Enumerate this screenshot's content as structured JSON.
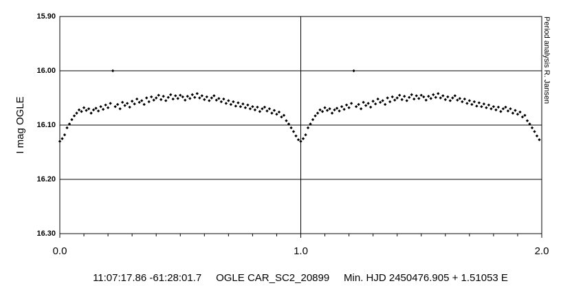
{
  "chart_data": {
    "type": "scatter",
    "ylabel": "I mag OGLE",
    "side_note": "Period analysis R. Jansen",
    "footer": "11:07:17.86 -61:28:01.7     OGLE CAR_SC2_20899     Min. HJD 2450476.905 + 1.51053 E",
    "xlim": [
      0,
      2
    ],
    "ylim": [
      16.3,
      15.9
    ],
    "inverted_y": true,
    "xticks": [
      {
        "value": 0,
        "label": "0.0"
      },
      {
        "value": 1,
        "label": "1.0"
      },
      {
        "value": 2,
        "label": "2.0"
      }
    ],
    "xminorticks": [
      0.1,
      0.2,
      0.3,
      0.4,
      0.5,
      0.6,
      0.7,
      0.8,
      0.9,
      1.1,
      1.2,
      1.3,
      1.4,
      1.5,
      1.6,
      1.7,
      1.8,
      1.9
    ],
    "yticks": [
      {
        "value": 15.9,
        "label": "15.90"
      },
      {
        "value": 16.0,
        "label": "16.00"
      },
      {
        "value": 16.1,
        "label": "16.10"
      },
      {
        "value": 16.2,
        "label": "16.20"
      },
      {
        "value": 16.3,
        "label": "16.30"
      }
    ],
    "grid": true,
    "color": "#000000",
    "x": [
      0,
      0.01,
      0.02,
      0.03,
      0.04,
      0.05,
      0.06,
      0.07,
      0.08,
      0.09,
      0.1,
      0.11,
      0.12,
      0.13,
      0.14,
      0.15,
      0.16,
      0.17,
      0.18,
      0.19,
      0.2,
      0.21,
      0.22,
      0.23,
      0.24,
      0.25,
      0.26,
      0.27,
      0.28,
      0.29,
      0.3,
      0.31,
      0.32,
      0.33,
      0.34,
      0.35,
      0.36,
      0.37,
      0.38,
      0.39,
      0.4,
      0.41,
      0.42,
      0.43,
      0.44,
      0.45,
      0.46,
      0.47,
      0.48,
      0.49,
      0.5,
      0.51,
      0.52,
      0.53,
      0.54,
      0.55,
      0.56,
      0.57,
      0.58,
      0.59,
      0.6,
      0.61,
      0.62,
      0.63,
      0.64,
      0.65,
      0.66,
      0.67,
      0.68,
      0.69,
      0.7,
      0.71,
      0.72,
      0.73,
      0.74,
      0.75,
      0.76,
      0.77,
      0.78,
      0.79,
      0.8,
      0.81,
      0.82,
      0.83,
      0.84,
      0.85,
      0.86,
      0.87,
      0.88,
      0.89,
      0.9,
      0.91,
      0.92,
      0.93,
      0.94,
      0.95,
      0.96,
      0.97,
      0.98,
      0.99,
      1,
      1.01,
      1.02,
      1.03,
      1.04,
      1.05,
      1.06,
      1.07,
      1.08,
      1.09,
      1.1,
      1.11,
      1.12,
      1.13,
      1.14,
      1.15,
      1.16,
      1.17,
      1.18,
      1.19,
      1.2,
      1.21,
      1.22,
      1.23,
      1.24,
      1.25,
      1.26,
      1.27,
      1.28,
      1.29,
      1.3,
      1.31,
      1.32,
      1.33,
      1.34,
      1.35,
      1.36,
      1.37,
      1.38,
      1.39,
      1.4,
      1.41,
      1.42,
      1.43,
      1.44,
      1.45,
      1.46,
      1.47,
      1.48,
      1.49,
      1.5,
      1.51,
      1.52,
      1.53,
      1.54,
      1.55,
      1.56,
      1.57,
      1.58,
      1.59,
      1.6,
      1.61,
      1.62,
      1.63,
      1.64,
      1.65,
      1.66,
      1.67,
      1.68,
      1.69,
      1.7,
      1.71,
      1.72,
      1.73,
      1.74,
      1.75,
      1.76,
      1.77,
      1.78,
      1.79,
      1.8,
      1.81,
      1.82,
      1.83,
      1.84,
      1.85,
      1.86,
      1.87,
      1.88,
      1.89,
      1.9,
      1.91,
      1.92,
      1.93,
      1.94,
      1.95,
      1.96,
      1.97,
      1.98,
      1.99
    ],
    "values": [
      16.13,
      16.125,
      16.118,
      16.105,
      16.098,
      16.09,
      16.083,
      16.078,
      16.072,
      16.075,
      16.068,
      16.073,
      16.07,
      16.078,
      16.072,
      16.069,
      16.074,
      16.066,
      16.071,
      16.063,
      16.068,
      16.06,
      16.0,
      16.066,
      16.062,
      16.07,
      16.058,
      16.064,
      16.06,
      16.067,
      16.056,
      16.061,
      16.052,
      16.058,
      16.055,
      16.062,
      16.05,
      16.057,
      16.048,
      16.054,
      16.05,
      16.045,
      16.053,
      16.047,
      16.055,
      16.049,
      16.044,
      16.052,
      16.046,
      16.051,
      16.045,
      16.048,
      16.054,
      16.047,
      16.051,
      16.044,
      16.049,
      16.042,
      16.05,
      16.046,
      16.053,
      16.048,
      16.055,
      16.05,
      16.046,
      16.054,
      16.051,
      16.057,
      16.052,
      16.06,
      16.055,
      16.062,
      16.057,
      16.065,
      16.059,
      16.066,
      16.061,
      16.068,
      16.063,
      16.07,
      16.066,
      16.072,
      16.067,
      16.075,
      16.07,
      16.067,
      16.074,
      16.07,
      16.078,
      16.073,
      16.08,
      16.076,
      16.085,
      16.082,
      16.092,
      16.098,
      16.105,
      16.112,
      16.12,
      16.127,
      16.13,
      16.125,
      16.118,
      16.105,
      16.098,
      16.09,
      16.083,
      16.078,
      16.072,
      16.075,
      16.068,
      16.073,
      16.07,
      16.078,
      16.072,
      16.069,
      16.074,
      16.066,
      16.071,
      16.063,
      16.068,
      16.06,
      16.0,
      16.066,
      16.062,
      16.07,
      16.058,
      16.064,
      16.06,
      16.067,
      16.056,
      16.061,
      16.052,
      16.058,
      16.055,
      16.062,
      16.05,
      16.057,
      16.048,
      16.054,
      16.05,
      16.045,
      16.053,
      16.047,
      16.055,
      16.049,
      16.044,
      16.052,
      16.046,
      16.051,
      16.045,
      16.048,
      16.054,
      16.047,
      16.051,
      16.044,
      16.049,
      16.042,
      16.05,
      16.046,
      16.053,
      16.048,
      16.055,
      16.05,
      16.046,
      16.054,
      16.051,
      16.057,
      16.052,
      16.06,
      16.055,
      16.062,
      16.057,
      16.065,
      16.059,
      16.066,
      16.061,
      16.068,
      16.063,
      16.07,
      16.066,
      16.072,
      16.067,
      16.075,
      16.07,
      16.067,
      16.074,
      16.07,
      16.078,
      16.073,
      16.08,
      16.076,
      16.085,
      16.082,
      16.092,
      16.098,
      16.105,
      16.112,
      16.12,
      16.127
    ]
  }
}
